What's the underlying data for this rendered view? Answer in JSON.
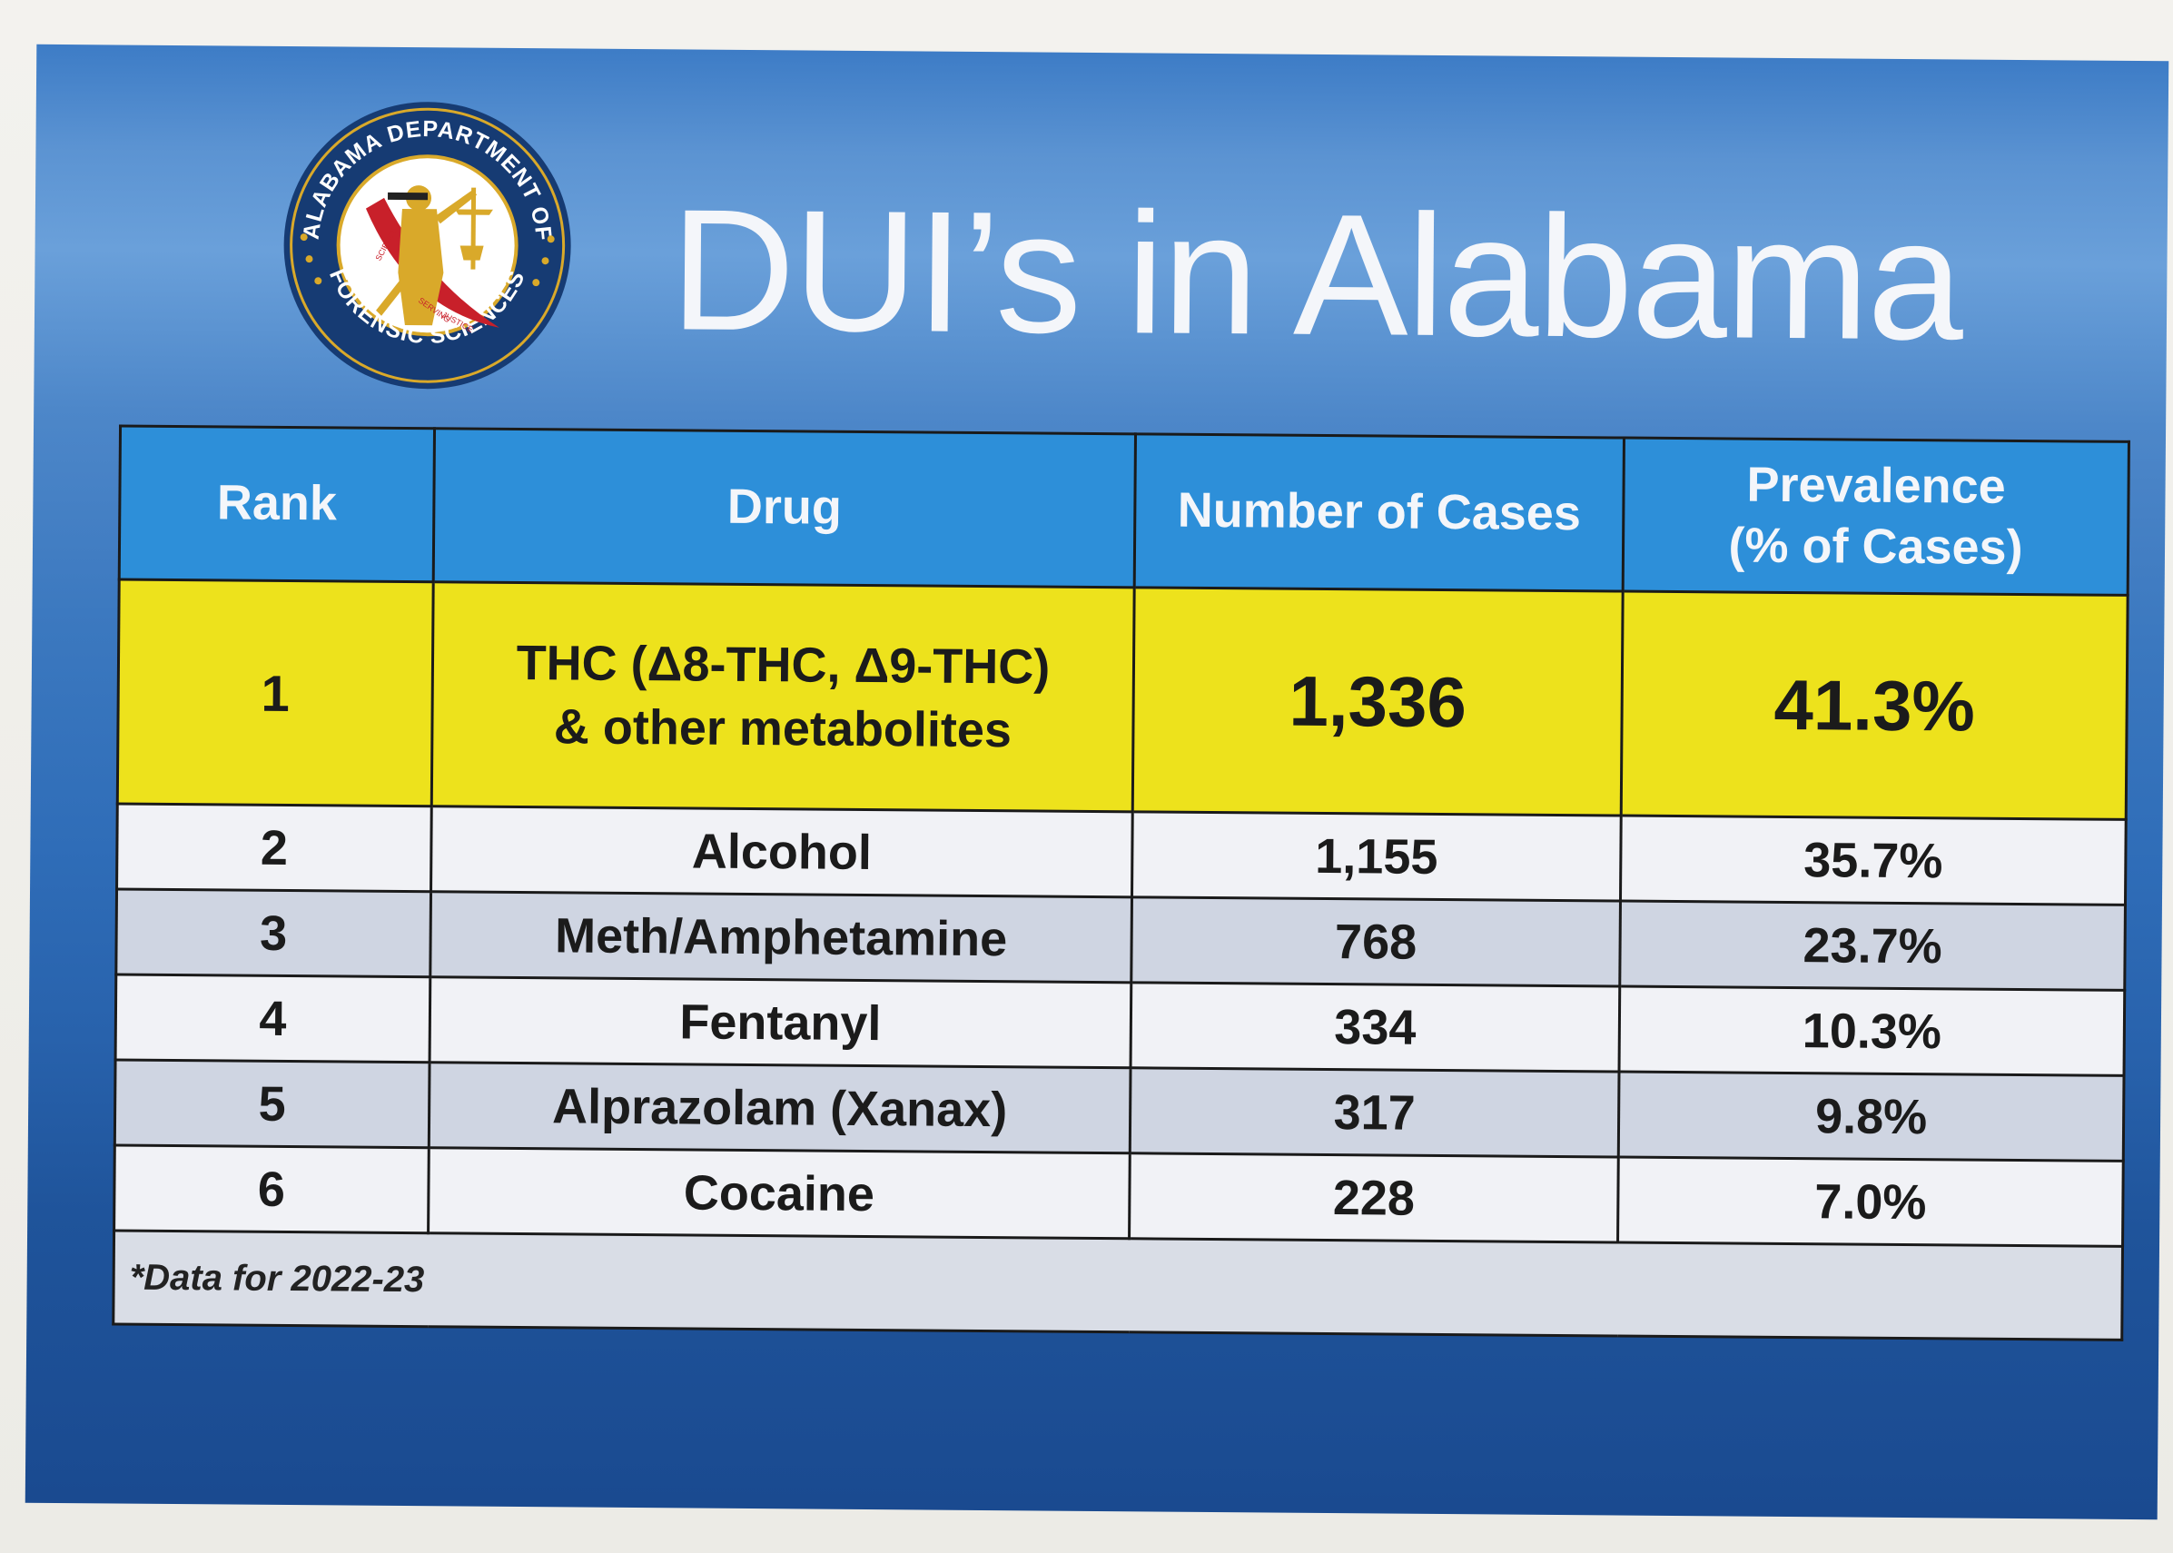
{
  "title": "DUI’s in Alabama",
  "logo": {
    "top_text": "ALABAMA DEPARTMENT OF",
    "bottom_text": "FORENSIC SCIENCES",
    "inner_left": "SCIENCE",
    "inner_mid": "SERVING",
    "inner_right": "JUSTICE",
    "colors": {
      "ring": "#163b73",
      "inner": "#ffffff",
      "gold": "#d9a92a",
      "red": "#c8202a"
    }
  },
  "table": {
    "headers": {
      "rank": "Rank",
      "drug": "Drug",
      "cases": "Number of Cases",
      "prevalence_line1": "Prevalence",
      "prevalence_line2": "(% of Cases)"
    },
    "rows": [
      {
        "rank": "1",
        "drug_line1": "THC (Δ8-THC, Δ9-THC)",
        "drug_line2": "& other metabolites",
        "cases": "1,336",
        "prevalence": "41.3%"
      },
      {
        "rank": "2",
        "drug": "Alcohol",
        "cases": "1,155",
        "prevalence": "35.7%"
      },
      {
        "rank": "3",
        "drug": "Meth/Amphetamine",
        "cases": "768",
        "prevalence": "23.7%"
      },
      {
        "rank": "4",
        "drug": "Fentanyl",
        "cases": "334",
        "prevalence": "10.3%"
      },
      {
        "rank": "5",
        "drug": "Alprazolam (Xanax)",
        "cases": "317",
        "prevalence": "9.8%"
      },
      {
        "rank": "6",
        "drug": "Cocaine",
        "cases": "228",
        "prevalence": "7.0%"
      }
    ],
    "footnote": "*Data for 2022-23"
  },
  "colors": {
    "header_bg": "#2d8fd9",
    "highlight_row": "#ede21c",
    "light_row": "#f1f2f6",
    "shade_row": "#cfd5e2",
    "background_blue": "#2f6db8"
  }
}
